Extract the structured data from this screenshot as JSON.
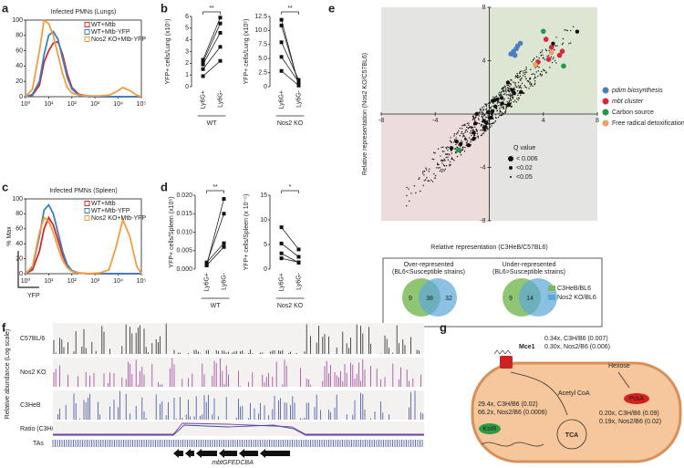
{
  "panels": {
    "a": {
      "label": "a",
      "title": "Infected PMNs (Lungs)",
      "x": [
        0,
        0.3,
        0.6,
        0.8,
        1.0,
        1.2,
        1.4,
        1.6,
        1.8,
        2.0,
        2.3,
        2.7,
        3.2,
        3.6,
        3.9,
        4.2,
        4.5,
        4.8,
        5.0
      ],
      "series": [
        {
          "name": "WT+Mtb",
          "color": "#d62728",
          "values": [
            0,
            2,
            15,
            45,
            60,
            70,
            72,
            55,
            30,
            12,
            3,
            1,
            0,
            0,
            0,
            0,
            0,
            0,
            0
          ]
        },
        {
          "name": "WT+Mtb-YFP",
          "color": "#3a7fc4",
          "values": [
            0,
            3,
            20,
            55,
            80,
            85,
            75,
            50,
            25,
            10,
            2,
            0,
            0,
            0,
            0,
            0,
            0,
            0,
            0
          ]
        },
        {
          "name": "Nos2 KO+Mtb-YFP",
          "color": "#f39c3c",
          "values": [
            0,
            10,
            60,
            100,
            95,
            80,
            55,
            30,
            12,
            5,
            2,
            1,
            1,
            2,
            6,
            12,
            8,
            2,
            0
          ]
        }
      ],
      "ylim": [
        0,
        100
      ],
      "yticks": [
        0,
        20,
        40,
        60,
        80,
        100
      ],
      "xlim": [
        0,
        5
      ],
      "xticks": [
        {
          "value": 0,
          "label": "10⁰"
        },
        {
          "value": 1,
          "label": "10¹"
        },
        {
          "value": 2,
          "label": "10²"
        },
        {
          "value": 3,
          "label": "10³"
        },
        {
          "value": 4,
          "label": "10⁴"
        },
        {
          "value": 5,
          "label": "10⁵"
        }
      ]
    },
    "c": {
      "label": "c",
      "title": "Infected PMNs (Spleen)",
      "ylabel": "% Max",
      "xlabel": "YFP",
      "x": [
        0,
        0.3,
        0.6,
        0.8,
        1.0,
        1.2,
        1.4,
        1.6,
        1.8,
        2.0,
        2.3,
        2.7,
        3.2,
        3.6,
        3.9,
        4.2,
        4.5,
        4.8,
        5.0
      ],
      "series": [
        {
          "name": "WT+Mtb",
          "color": "#d62728",
          "values": [
            0,
            5,
            30,
            60,
            75,
            65,
            45,
            25,
            10,
            4,
            1,
            0,
            0,
            0,
            0,
            0,
            0,
            0,
            0
          ]
        },
        {
          "name": "WT+Mtb-YFP",
          "color": "#3a7fc4",
          "values": [
            0,
            8,
            50,
            85,
            92,
            80,
            55,
            30,
            12,
            4,
            1,
            0,
            0,
            0,
            0,
            0,
            0,
            0,
            0
          ]
        },
        {
          "name": "Nos2 KO+Mtb-YFP",
          "color": "#f39c3c",
          "values": [
            0,
            10,
            55,
            75,
            70,
            55,
            35,
            18,
            8,
            3,
            1,
            0,
            1,
            5,
            35,
            72,
            50,
            10,
            0
          ]
        }
      ],
      "ylim": [
        0,
        100
      ],
      "yticks": [
        0,
        20,
        40,
        60,
        80,
        100
      ],
      "xlim": [
        0,
        5
      ],
      "xticks": [
        {
          "value": 0,
          "label": "10⁰"
        },
        {
          "value": 1,
          "label": "10¹"
        },
        {
          "value": 2,
          "label": "10²"
        },
        {
          "value": 3,
          "label": "10³"
        },
        {
          "value": 4,
          "label": "10⁴"
        },
        {
          "value": 5,
          "label": "10⁵"
        }
      ]
    },
    "b": {
      "label": "b",
      "plots": [
        {
          "ylabel": "YFP+ cells/Lung (x10⁵)",
          "ylim": [
            0,
            6
          ],
          "yticks": [
            0,
            1,
            2,
            3,
            4,
            5,
            6
          ],
          "categories": [
            "Ly6G+",
            "Ly6G-"
          ],
          "group": "WT",
          "significance": "**",
          "pairs": [
            [
              0.9,
              2.2
            ],
            [
              1.5,
              3.4
            ],
            [
              1.9,
              4.6
            ],
            [
              2.1,
              5.4
            ],
            [
              2.3,
              5.9
            ]
          ]
        },
        {
          "ylabel": "YFP+ cells/Lung (x10⁵)",
          "ylim": [
            0,
            12.5
          ],
          "yticks": [
            0,
            2.5,
            {
              "value": 5,
              "label": "5.0"
            },
            7.5,
            {
              "value": 10,
              "label": "10.0"
            },
            12.5
          ],
          "categories": [
            "Ly6G+",
            "Ly6G-"
          ],
          "group": "Nos2 KO",
          "significance": "**",
          "pairs": [
            [
              11.9,
              0.3
            ],
            [
              10.9,
              0.5
            ],
            [
              7.9,
              1.2
            ],
            [
              5.3,
              0.8
            ],
            [
              2.8,
              0.2
            ]
          ]
        }
      ]
    },
    "d": {
      "label": "d",
      "plots": [
        {
          "ylabel": "YFP+ cells/Spleen (x10⁵)",
          "ylim": [
            0,
            0.02
          ],
          "yticks": [
            {
              "value": 0,
              "label": "0.000"
            },
            {
              "value": 0.005,
              "label": "0.005"
            },
            {
              "value": 0.01,
              "label": "0.010"
            },
            {
              "value": 0.015,
              "label": "0.015"
            },
            {
              "value": 0.02,
              "label": "0.020"
            }
          ],
          "categories": [
            "Ly6G+",
            "Ly6G-"
          ],
          "group": "WT",
          "significance": "**",
          "pairs": [
            [
              0.001,
              0.019
            ],
            [
              0.0015,
              0.015
            ],
            [
              0.0018,
              0.007
            ],
            [
              0.001,
              0.006
            ]
          ]
        },
        {
          "ylabel": "YFP+ cells/Spleen (x 10⁻⁵)",
          "ylim": [
            0,
            15
          ],
          "yticks": [
            0,
            5,
            10,
            15
          ],
          "categories": [
            "Ly6G+",
            "Ly6G-"
          ],
          "group": "Nos2 KO",
          "significance": "*",
          "pairs": [
            [
              8.5,
              4.0
            ],
            [
              5.2,
              2.5
            ],
            [
              3.2,
              1.3
            ],
            [
              2.2,
              1.4
            ]
          ]
        }
      ]
    },
    "e": {
      "label": "e",
      "xlabel": "Relative representation (C3HeB/C57BL6)",
      "ylabel": "Relative representation (Nos2 KO/C57BL6)",
      "xlim": [
        -8,
        8
      ],
      "ylim": [
        -8,
        8
      ],
      "xticks": [
        -8,
        -4,
        4,
        8
      ],
      "yticks": [
        -8,
        -4,
        4,
        8
      ],
      "groups": [
        {
          "name": "pdim biosynthesis",
          "color": "#4a7fc1",
          "points": [
            [
              1.6,
              4.5
            ],
            [
              1.8,
              4.7
            ],
            [
              2.0,
              4.9
            ],
            [
              2.1,
              5.1
            ],
            [
              2.3,
              5.3
            ],
            [
              1.9,
              4.4
            ]
          ]
        },
        {
          "name": "mbt cluster",
          "color": "#d9263a",
          "points": [
            [
              4.2,
              5.6
            ],
            [
              4.6,
              5.0
            ],
            [
              5.2,
              4.4
            ],
            [
              3.6,
              3.9
            ],
            [
              4.4,
              4.1
            ],
            [
              5.4,
              4.7
            ]
          ]
        },
        {
          "name": "Carbon source",
          "color": "#1f9a4a",
          "points": [
            [
              4.0,
              6.2
            ],
            [
              5.5,
              3.6
            ],
            [
              -2.3,
              -2.7
            ]
          ]
        },
        {
          "name": "Free radical detoxification",
          "color": "#f0a060",
          "points": [
            [
              3.4,
              3.7
            ],
            [
              4.6,
              4.6
            ]
          ]
        }
      ],
      "qvalue": {
        "title": "Q value",
        "levels": [
          "< 0.006",
          "<0.02",
          "<0.05"
        ]
      },
      "venn": [
        {
          "title": "Over-represented",
          "subtitle": "(BL6<Susceptible strains)",
          "counts": [
            9,
            38,
            32
          ]
        },
        {
          "title": "Under-represented",
          "subtitle": "(BL6>Susceptible strains)",
          "counts": [
            9,
            14,
            7
          ]
        }
      ],
      "venn_legend": [
        {
          "name": "C3HeB/BL6",
          "color": "#7dbb5a"
        },
        {
          "name": "Nos2 KO/BL6",
          "color": "#5ba7d8"
        }
      ]
    },
    "f": {
      "label": "f",
      "ylabel": "Relative abundance (Log scale)",
      "tracks": [
        {
          "name": "C57BL/6",
          "color": "#222222"
        },
        {
          "name": "Nos2 KO",
          "color": "#a0409a"
        },
        {
          "name": "C3HeB",
          "color": "#3a4fa8"
        }
      ],
      "ratio_label": "Ratio (C3H/BL6, Nos2 KO/BL6)",
      "tas_label": "TAs",
      "genes": "mbtGFEDCBA"
    },
    "g": {
      "label": "g",
      "protein": "Mce1",
      "mce_stats": [
        "0.34x, C3H/B6 (0.007)",
        "0.30x, Nos2/B6 (0.006)"
      ],
      "hexose": "Hexose",
      "kstr_stats": [
        "29.4x, C3H/B6 (0.02)",
        "66.2x, Nos2/B6 (0.0006)"
      ],
      "acetyl": "Acetyl CoA",
      "kstr": "KstR",
      "tca": "TCA",
      "pcka": "PckA",
      "pcka_stats": [
        "0.20x, C3H/B6 (0.09)",
        "0.19x, Nos2/B6 (0.02)"
      ]
    }
  }
}
